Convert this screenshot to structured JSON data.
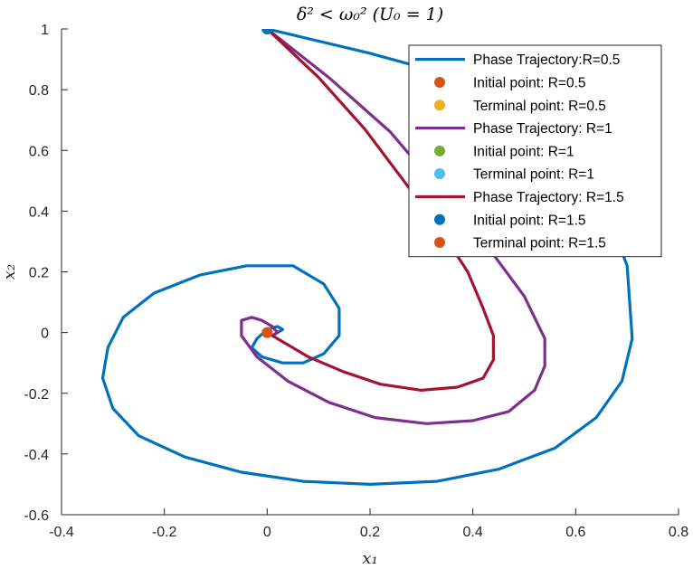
{
  "chart_data": {
    "type": "line",
    "title": "δ² < ω₀² (U₀ = 1)",
    "xlabel": "x₁",
    "ylabel": "x₂",
    "xlim": [
      -0.4,
      0.8
    ],
    "ylim": [
      -0.6,
      1.0
    ],
    "xticks": [
      -0.4,
      -0.2,
      0,
      0.2,
      0.4,
      0.6,
      0.8
    ],
    "xtick_labels": [
      "-0.4",
      "-0.2",
      "0",
      "0.2",
      "0.4",
      "0.6",
      "0.8"
    ],
    "yticks": [
      -0.6,
      -0.4,
      -0.2,
      0,
      0.2,
      0.4,
      0.6,
      0.8,
      1.0
    ],
    "ytick_labels": [
      "-0.6",
      "-0.4",
      "-0.2",
      "0",
      "0.2",
      "0.4",
      "0.6",
      "0.8",
      "1"
    ],
    "grid": false,
    "legend_position": "top-right",
    "series": [
      {
        "name": "Phase Trajectory:R=0.5",
        "color": "#0072BD",
        "x": [
          0,
          0.2,
          0.35,
          0.45,
          0.54,
          0.61,
          0.66,
          0.7,
          0.71,
          0.69,
          0.64,
          0.56,
          0.45,
          0.33,
          0.2,
          0.07,
          -0.05,
          -0.16,
          -0.25,
          -0.3,
          -0.32,
          -0.31,
          -0.28,
          -0.22,
          -0.13,
          -0.04,
          0.05,
          0.11,
          0.14,
          0.14,
          0.11,
          0.07,
          0.03,
          -0.01,
          -0.03,
          -0.02,
          0.0,
          0.02,
          0.03,
          0.02,
          0.01,
          0.0
        ],
        "y": [
          1.0,
          0.92,
          0.85,
          0.78,
          0.68,
          0.54,
          0.4,
          0.22,
          -0.02,
          -0.16,
          -0.28,
          -0.38,
          -0.45,
          -0.49,
          -0.5,
          -0.49,
          -0.46,
          -0.41,
          -0.34,
          -0.25,
          -0.15,
          -0.05,
          0.05,
          0.13,
          0.19,
          0.22,
          0.22,
          0.16,
          0.08,
          -0.01,
          -0.07,
          -0.1,
          -0.1,
          -0.08,
          -0.05,
          -0.02,
          0.01,
          0.02,
          0.01,
          0.0,
          -0.01,
          0.0
        ]
      },
      {
        "name": "Initial point: R=0.5",
        "color": "#D95319",
        "marker": "o",
        "x": [
          0
        ],
        "y": [
          1.0
        ]
      },
      {
        "name": "Terminal point: R=0.5",
        "color": "#EDB120",
        "marker": "o",
        "x": [
          0
        ],
        "y": [
          0
        ]
      },
      {
        "name": "Phase Trajectory: R=1",
        "color": "#7E2F8E",
        "x": [
          0,
          0.12,
          0.24,
          0.35,
          0.43,
          0.5,
          0.54,
          0.54,
          0.52,
          0.47,
          0.4,
          0.31,
          0.21,
          0.12,
          0.04,
          -0.02,
          -0.05,
          -0.05,
          -0.03,
          -0.01,
          0.01,
          0.02,
          0.01,
          0.0
        ],
        "y": [
          1.0,
          0.84,
          0.66,
          0.44,
          0.28,
          0.12,
          -0.02,
          -0.11,
          -0.19,
          -0.26,
          -0.29,
          -0.3,
          -0.28,
          -0.23,
          -0.16,
          -0.08,
          -0.01,
          0.04,
          0.05,
          0.04,
          0.02,
          0.0,
          -0.01,
          0.0
        ]
      },
      {
        "name": "Initial point: R=1",
        "color": "#77AC30",
        "marker": "o",
        "x": [
          0
        ],
        "y": [
          1.0
        ]
      },
      {
        "name": "Terminal point: R=1",
        "color": "#4DBEEE",
        "marker": "o",
        "x": [
          0
        ],
        "y": [
          0
        ]
      },
      {
        "name": "Phase Trajectory: R=1.5",
        "color": "#A2142F",
        "x": [
          0,
          0.1,
          0.19,
          0.27,
          0.34,
          0.39,
          0.42,
          0.44,
          0.44,
          0.42,
          0.37,
          0.3,
          0.22,
          0.15,
          0.08,
          0.03,
          0.0
        ],
        "y": [
          1.0,
          0.84,
          0.67,
          0.49,
          0.33,
          0.2,
          0.08,
          -0.01,
          -0.09,
          -0.15,
          -0.18,
          -0.19,
          -0.17,
          -0.13,
          -0.08,
          -0.03,
          0.0
        ]
      },
      {
        "name": "Initial point: R=1.5",
        "color": "#0072BD",
        "marker": "o",
        "x": [
          0
        ],
        "y": [
          1.0
        ]
      },
      {
        "name": "Terminal point: R=1.5",
        "color": "#D95319",
        "marker": "o",
        "x": [
          0
        ],
        "y": [
          0
        ]
      }
    ]
  }
}
